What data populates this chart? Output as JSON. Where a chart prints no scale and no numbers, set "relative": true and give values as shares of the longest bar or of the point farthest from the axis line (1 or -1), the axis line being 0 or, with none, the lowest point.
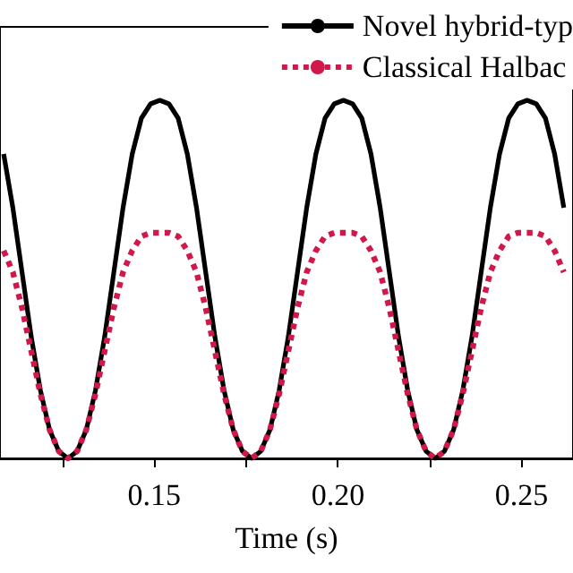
{
  "chart_data": {
    "type": "line",
    "xlabel": "Time (s)",
    "relative": true,
    "grid": false,
    "legend": "top right",
    "marker": "none",
    "x": [
      0.109,
      0.1115,
      0.114,
      0.1165,
      0.119,
      0.1215,
      0.124,
      0.1265,
      0.129,
      0.1315,
      0.134,
      0.1365,
      0.139,
      0.1415,
      0.144,
      0.1465,
      0.149,
      0.1515,
      0.154,
      0.1565,
      0.159,
      0.1615,
      0.164,
      0.1665,
      0.169,
      0.1715,
      0.174,
      0.1765,
      0.179,
      0.1815,
      0.184,
      0.1865,
      0.189,
      0.1915,
      0.194,
      0.1965,
      0.199,
      0.2015,
      0.204,
      0.2065,
      0.209,
      0.2115,
      0.214,
      0.2165,
      0.219,
      0.2215,
      0.224,
      0.2265,
      0.229,
      0.2315,
      0.234,
      0.2365,
      0.239,
      0.2415,
      0.244,
      0.2465,
      0.249,
      0.2515,
      0.254,
      0.2565,
      0.259,
      0.2615
    ],
    "xlim": [
      0.108,
      0.264
    ],
    "xticks": [
      {
        "value": 0.125,
        "label": null
      },
      0.15,
      {
        "value": 0.175,
        "label": null
      },
      {
        "value": 0.2,
        "label": "0.20"
      },
      {
        "value": 0.225,
        "label": null
      },
      0.25
    ],
    "series": [
      {
        "name": "Novel hybrid-typ",
        "color": "#000000",
        "line_style": "solid",
        "values": [
          0.85,
          0.7,
          0.52,
          0.34,
          0.19,
          0.08,
          0.02,
          0,
          0.02,
          0.08,
          0.19,
          0.34,
          0.52,
          0.7,
          0.85,
          0.95,
          0.99,
          1,
          0.99,
          0.95,
          0.85,
          0.7,
          0.52,
          0.34,
          0.19,
          0.08,
          0.02,
          0,
          0.02,
          0.08,
          0.19,
          0.34,
          0.52,
          0.7,
          0.85,
          0.95,
          0.99,
          1,
          0.99,
          0.95,
          0.85,
          0.7,
          0.52,
          0.34,
          0.19,
          0.08,
          0.02,
          0,
          0.02,
          0.08,
          0.19,
          0.34,
          0.52,
          0.7,
          0.85,
          0.95,
          0.99,
          1,
          0.99,
          0.95,
          0.85,
          0.7
        ]
      },
      {
        "name": "Classical Halbac",
        "color": "#d0184a",
        "line_style": "dotted",
        "values": [
          0.58,
          0.52,
          0.42,
          0.3,
          0.18,
          0.08,
          0.02,
          0,
          0.02,
          0.08,
          0.18,
          0.3,
          0.42,
          0.52,
          0.58,
          0.62,
          0.63,
          0.63,
          0.63,
          0.62,
          0.58,
          0.52,
          0.42,
          0.3,
          0.18,
          0.08,
          0.02,
          0,
          0.02,
          0.08,
          0.18,
          0.3,
          0.42,
          0.52,
          0.58,
          0.62,
          0.63,
          0.63,
          0.63,
          0.62,
          0.58,
          0.52,
          0.42,
          0.3,
          0.18,
          0.08,
          0.02,
          0,
          0.02,
          0.08,
          0.18,
          0.3,
          0.42,
          0.52,
          0.58,
          0.62,
          0.63,
          0.63,
          0.63,
          0.62,
          0.58,
          0.52
        ]
      }
    ]
  }
}
